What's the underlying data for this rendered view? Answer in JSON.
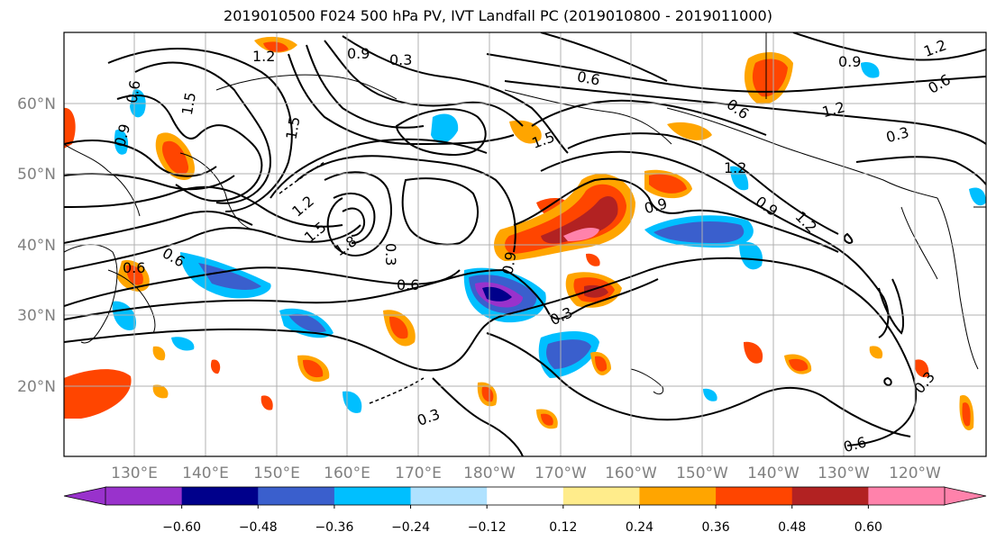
{
  "title": "2019010500 F024 500 hPa PV, IVT Landfall PC (2019010800 - 2019011000)",
  "lat_labels": [
    "60°N",
    "50°N",
    "40°N",
    "30°N",
    "20°N"
  ],
  "lon_labels": [
    "130°E",
    "140°E",
    "150°E",
    "160°E",
    "170°E",
    "180°W",
    "170°W",
    "160°W",
    "150°W",
    "140°W",
    "130°W",
    "120°W"
  ],
  "contour_labels": [
    "1.2",
    "0.9",
    "0.3",
    "1.5",
    "0.6",
    "1.5",
    "0.9",
    "1.2",
    "1.8",
    "0.3",
    "0.6",
    "0.9",
    "0.6",
    "0.6",
    "0.3",
    "0.9",
    "1.2",
    "0.3",
    "0.9",
    "0.6",
    "0.3",
    "1.2",
    "0.9",
    "1.2",
    "0.3",
    "0.6",
    "1.5",
    "1.2",
    "1.5",
    "0.6",
    "0.6"
  ],
  "colorbar": {
    "colors": [
      "#9932cc",
      "#00008b",
      "#3a5fcd",
      "#00bfff",
      "#b0e2ff",
      "#ffffff",
      "#ffec8b",
      "#ffa500",
      "#ff4500",
      "#b22222",
      "#ff82ab"
    ],
    "tick_labels": [
      "−0.60",
      "−0.48",
      "−0.36",
      "−0.24",
      "−0.12",
      "0.12",
      "0.24",
      "0.36",
      "0.48",
      "0.60"
    ]
  }
}
